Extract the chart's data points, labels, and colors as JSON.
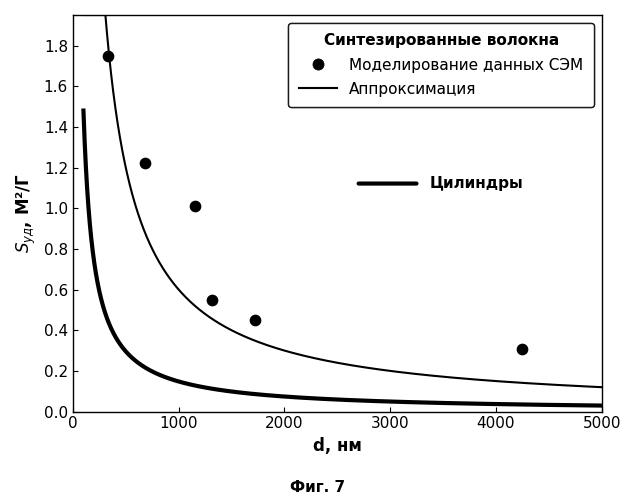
{
  "title": "",
  "xlabel": "d, нм",
  "ylabel": "$S_{уд}$, М²/Г",
  "figcaption": "Фиг. 7",
  "xlim": [
    0,
    5000
  ],
  "ylim": [
    0.0,
    1.95
  ],
  "yticks": [
    0.0,
    0.2,
    0.4,
    0.6,
    0.8,
    1.0,
    1.2,
    1.4,
    1.6,
    1.8
  ],
  "xticks": [
    0,
    1000,
    2000,
    3000,
    4000,
    5000
  ],
  "scatter_x": [
    330,
    680,
    1150,
    1320,
    1720,
    4250
  ],
  "scatter_y": [
    1.75,
    1.22,
    1.01,
    0.55,
    0.45,
    0.31
  ],
  "curve_approx_A": 600,
  "curve_approx_n": 1.0,
  "curve_cylinders_A": 148,
  "curve_cylinders_n": 1.0,
  "legend_title": "Синтезированные волокна",
  "legend_scatter_label": "Моделирование данных СЭМ",
  "legend_approx_label": "Аппроксимация",
  "legend_cylinders_label": "Цилиндры",
  "scatter_color": "#000000",
  "approx_color": "#000000",
  "cylinders_color": "#000000",
  "approx_linewidth": 1.5,
  "cylinders_linewidth": 3.0,
  "background_color": "#ffffff",
  "legend_box_color": "#ffffff",
  "font_size": 11,
  "caption_font_size": 11
}
